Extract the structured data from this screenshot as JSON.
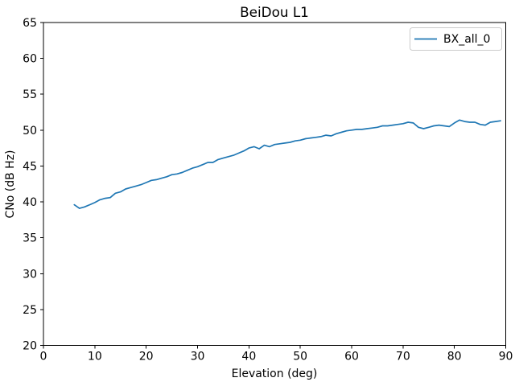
{
  "title": "BeiDou L1",
  "legend": {
    "position": "upper right",
    "entries": [
      {
        "label": "BX_all_0",
        "color": "#1f77b4"
      }
    ]
  },
  "colors": {
    "line": "#1f77b4",
    "spine": "#000000",
    "legend_border": "#cccccc",
    "background": "#ffffff"
  },
  "chart_data": {
    "type": "line",
    "title": "BeiDou L1",
    "xlabel": "Elevation (deg)",
    "ylabel": "CNo (dB Hz)",
    "xlim": [
      0,
      90
    ],
    "ylim": [
      20,
      65
    ],
    "x_ticks": [
      0,
      10,
      20,
      30,
      40,
      50,
      60,
      70,
      80,
      90
    ],
    "y_ticks": [
      20,
      25,
      30,
      35,
      40,
      45,
      50,
      55,
      60,
      65
    ],
    "grid": false,
    "legend_position": "upper right",
    "series": [
      {
        "name": "BX_all_0",
        "color": "#1f77b4",
        "x": [
          6,
          7,
          8,
          9,
          10,
          11,
          12,
          13,
          14,
          15,
          16,
          17,
          18,
          19,
          20,
          21,
          22,
          23,
          24,
          25,
          26,
          27,
          28,
          29,
          30,
          31,
          32,
          33,
          34,
          35,
          36,
          37,
          38,
          39,
          40,
          41,
          42,
          43,
          44,
          45,
          46,
          47,
          48,
          49,
          50,
          51,
          52,
          53,
          54,
          55,
          56,
          57,
          58,
          59,
          60,
          61,
          62,
          63,
          64,
          65,
          66,
          67,
          68,
          69,
          70,
          71,
          72,
          73,
          74,
          75,
          76,
          77,
          78,
          79,
          80,
          81,
          82,
          83,
          84,
          85,
          86,
          87,
          88,
          89
        ],
        "values": [
          39.6,
          39.1,
          39.3,
          39.6,
          39.9,
          40.3,
          40.5,
          40.6,
          41.2,
          41.4,
          41.8,
          42.0,
          42.2,
          42.4,
          42.7,
          43.0,
          43.1,
          43.3,
          43.5,
          43.8,
          43.9,
          44.1,
          44.4,
          44.7,
          44.9,
          45.2,
          45.5,
          45.5,
          45.9,
          46.1,
          46.3,
          46.5,
          46.8,
          47.1,
          47.5,
          47.7,
          47.4,
          47.9,
          47.7,
          48.0,
          48.1,
          48.2,
          48.3,
          48.5,
          48.6,
          48.8,
          48.9,
          49.0,
          49.1,
          49.3,
          49.2,
          49.5,
          49.7,
          49.9,
          50.0,
          50.1,
          50.1,
          50.2,
          50.3,
          50.4,
          50.6,
          50.6,
          50.7,
          50.8,
          50.9,
          51.1,
          51.0,
          50.4,
          50.2,
          50.4,
          50.6,
          50.7,
          50.6,
          50.5,
          51.0,
          51.4,
          51.2,
          51.1,
          51.1,
          50.8,
          50.7,
          51.1,
          51.2,
          51.3
        ]
      }
    ]
  }
}
